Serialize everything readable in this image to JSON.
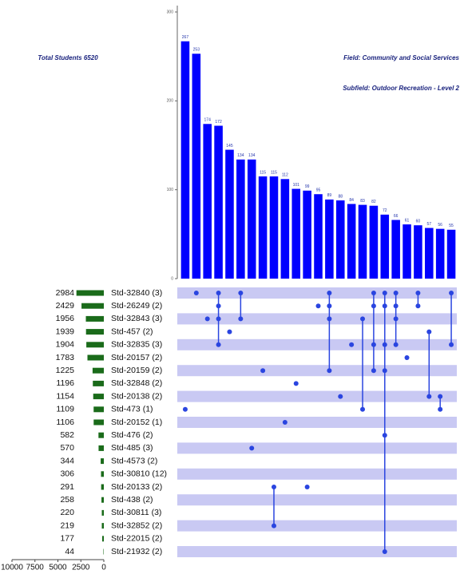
{
  "chart_data": {
    "type": "upset",
    "title": "Total Students 6520",
    "subtitle": "Field:  Community and Social Services",
    "annotation": "Subfield:  Outdoor Recreation  - Level  2",
    "bar_color": "#0000ff",
    "dot_color": "#2a45e0",
    "set_color": "#1a6b1a",
    "stripe_color": "#c9c9f3",
    "intersections": {
      "values": [
        267,
        253,
        174,
        172,
        145,
        134,
        134,
        115,
        115,
        112,
        101,
        99,
        95,
        89,
        88,
        84,
        83,
        82,
        72,
        66,
        61,
        60,
        57,
        56,
        55
      ],
      "members": [
        [
          9
        ],
        [
          0
        ],
        [
          2
        ],
        [
          0,
          1,
          2,
          4
        ],
        [
          3
        ],
        [
          0,
          2
        ],
        [
          12
        ],
        [
          6
        ],
        [
          15,
          18
        ],
        [
          10
        ],
        [
          7
        ],
        [
          15
        ],
        [
          1
        ],
        [
          0,
          1,
          2,
          6
        ],
        [
          8
        ],
        [
          4
        ],
        [
          2,
          9
        ],
        [
          0,
          1,
          4,
          6
        ],
        [
          0,
          1,
          4,
          6,
          11,
          20
        ],
        [
          0,
          1,
          2,
          4
        ],
        [
          5
        ],
        [
          0,
          1
        ],
        [
          3,
          8
        ],
        [
          8,
          9
        ],
        [
          0,
          4
        ]
      ]
    },
    "ylim": [
      0,
      300
    ],
    "yticks": [
      0,
      100,
      200,
      300
    ],
    "sets": {
      "names": [
        "Std-32840 (3)",
        "Std-26249 (2)",
        "Std-32843 (3)",
        "Std-457 (2)",
        "Std-32835 (3)",
        "Std-20157 (2)",
        "Std-20159 (2)",
        "Std-32848 (2)",
        "Std-20138 (2)",
        "Std-473 (1)",
        "Std-20152 (1)",
        "Std-476 (2)",
        "Std-485 (3)",
        "Std-4573 (2)",
        "Std-30810 (12)",
        "Std-20133 (2)",
        "Std-438 (2)",
        "Std-30811 (3)",
        "Std-32852 (2)",
        "Std-22015 (2)",
        "Std-21932 (2)"
      ],
      "values": [
        2984,
        2429,
        1956,
        1939,
        1904,
        1783,
        1225,
        1196,
        1154,
        1109,
        1106,
        582,
        570,
        344,
        306,
        291,
        258,
        220,
        219,
        177,
        44
      ]
    },
    "xlim": [
      0,
      10000
    ],
    "xticks": [
      10000,
      7500,
      5000,
      2500,
      0
    ]
  }
}
